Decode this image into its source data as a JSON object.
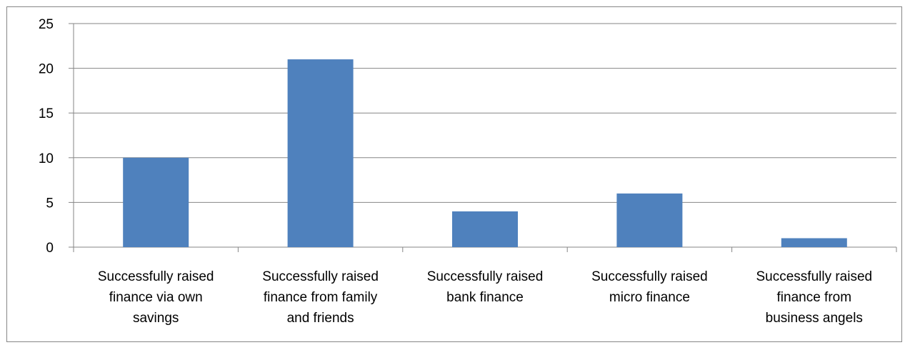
{
  "chart_data": {
    "type": "bar",
    "title": "",
    "xlabel": "",
    "ylabel": "",
    "ylim": [
      0,
      25
    ],
    "yticks": [
      0,
      5,
      10,
      15,
      20,
      25
    ],
    "grid": true,
    "legend": "none",
    "bar_color": "#4F81BD",
    "categories": [
      [
        "Successfully raised",
        "finance via own",
        "savings"
      ],
      [
        "Successfully raised",
        "finance from family",
        "and friends"
      ],
      [
        "Successfully raised",
        "bank finance"
      ],
      [
        "Successfully raised",
        "micro finance"
      ],
      [
        "Successfully raised",
        "finance from",
        "business angels"
      ]
    ],
    "values": [
      10,
      21,
      4,
      6,
      1
    ]
  }
}
